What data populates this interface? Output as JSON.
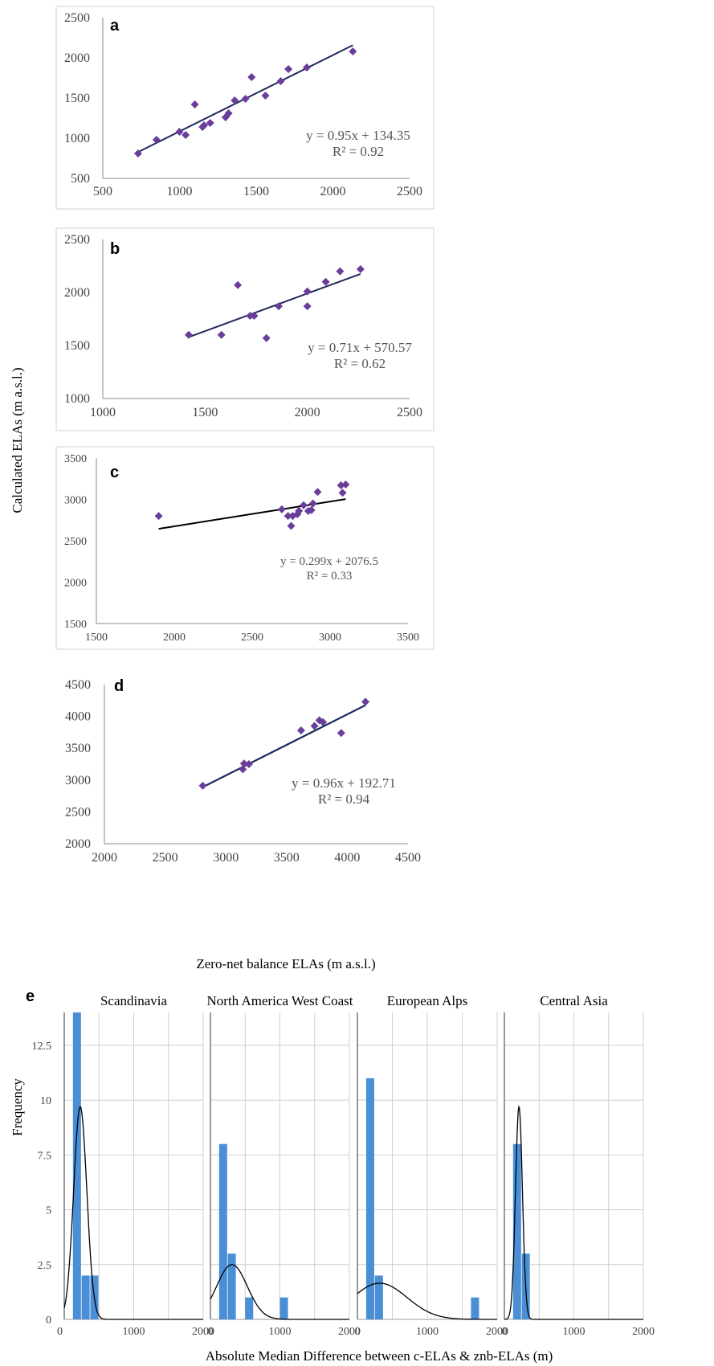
{
  "labels": {
    "y_axis_scatter": "Calculated ELAs (m a.s.l.)",
    "x_axis_scatter": "Zero-net balance ELAs (m a.s.l.)",
    "y_axis_hist": "Frequency",
    "x_axis_hist": "Absolute Median Difference between c-ELAs & znb-ELAs (m)"
  },
  "colors": {
    "marker": "#6a3d9a",
    "trendline_a": "#1f2a5a",
    "trendline_c": "#000000",
    "hist_bar": "#4a8fd6",
    "curve": "#000000"
  },
  "chart_data": [
    {
      "type": "scatter",
      "panel": "a",
      "xlim": [
        500,
        2500
      ],
      "ylim": [
        500,
        2500
      ],
      "xticks": [
        "500",
        "1000",
        "1500",
        "2000",
        "2500"
      ],
      "yticks": [
        "500",
        "1000",
        "1500",
        "2000",
        "2500"
      ],
      "points": [
        [
          730,
          810
        ],
        [
          850,
          980
        ],
        [
          1000,
          1080
        ],
        [
          1040,
          1040
        ],
        [
          1100,
          1420
        ],
        [
          1150,
          1140
        ],
        [
          1160,
          1160
        ],
        [
          1200,
          1190
        ],
        [
          1300,
          1260
        ],
        [
          1320,
          1310
        ],
        [
          1360,
          1470
        ],
        [
          1430,
          1490
        ],
        [
          1470,
          1760
        ],
        [
          1560,
          1530
        ],
        [
          1660,
          1710
        ],
        [
          1710,
          1860
        ],
        [
          1830,
          1880
        ],
        [
          2130,
          2080
        ]
      ],
      "trendline": {
        "x": [
          730,
          2130
        ],
        "slope": 0.95,
        "intercept": 134.35
      },
      "equation": "y = 0.95x + 134.35",
      "r2": "R² = 0.92",
      "grid": false
    },
    {
      "type": "scatter",
      "panel": "b",
      "xlim": [
        1000,
        2500
      ],
      "ylim": [
        1000,
        2500
      ],
      "xticks": [
        "1000",
        "1500",
        "2000",
        "2500"
      ],
      "yticks": [
        "1000",
        "1500",
        "2000",
        "2500"
      ],
      "points": [
        [
          1420,
          1600
        ],
        [
          1580,
          1600
        ],
        [
          1660,
          2070
        ],
        [
          1720,
          1780
        ],
        [
          1740,
          1780
        ],
        [
          1800,
          1570
        ],
        [
          1860,
          1870
        ],
        [
          2000,
          1870
        ],
        [
          2000,
          2010
        ],
        [
          2090,
          2100
        ],
        [
          2160,
          2200
        ],
        [
          2260,
          2220
        ]
      ],
      "trendline": {
        "x": [
          1420,
          2260
        ],
        "slope": 0.71,
        "intercept": 570.57
      },
      "equation": "y = 0.71x + 570.57",
      "r2": "R² = 0.62",
      "grid": false
    },
    {
      "type": "scatter",
      "panel": "c",
      "xlim": [
        1500,
        3500
      ],
      "ylim": [
        1500,
        3500
      ],
      "xticks": [
        "1500",
        "2000",
        "2500",
        "3000",
        "3500"
      ],
      "yticks": [
        "1500",
        "2000",
        "2500",
        "3000",
        "3500"
      ],
      "points": [
        [
          1900,
          2800
        ],
        [
          2690,
          2880
        ],
        [
          2730,
          2800
        ],
        [
          2750,
          2680
        ],
        [
          2760,
          2800
        ],
        [
          2790,
          2820
        ],
        [
          2800,
          2860
        ],
        [
          2830,
          2930
        ],
        [
          2860,
          2860
        ],
        [
          2880,
          2870
        ],
        [
          2890,
          2950
        ],
        [
          2920,
          3090
        ],
        [
          3070,
          3170
        ],
        [
          3080,
          3080
        ],
        [
          3100,
          3180
        ]
      ],
      "trendline": {
        "x": [
          1900,
          3100
        ],
        "slope": 0.299,
        "intercept": 2076.5
      },
      "equation": "y = 0.299x + 2076.5",
      "r2": "R² = 0.33",
      "grid": false
    },
    {
      "type": "scatter",
      "panel": "d",
      "xlim": [
        2000,
        4500
      ],
      "ylim": [
        2000,
        4500
      ],
      "xticks": [
        "2000",
        "2500",
        "3000",
        "3500",
        "4000",
        "4500"
      ],
      "yticks": [
        "2000",
        "2500",
        "3000",
        "3500",
        "4000",
        "4500"
      ],
      "points": [
        [
          2810,
          2910
        ],
        [
          3140,
          3170
        ],
        [
          3150,
          3260
        ],
        [
          3190,
          3250
        ],
        [
          3620,
          3780
        ],
        [
          3730,
          3850
        ],
        [
          3770,
          3940
        ],
        [
          3800,
          3910
        ],
        [
          3950,
          3740
        ],
        [
          4150,
          4230
        ]
      ],
      "trendline": {
        "x": [
          2810,
          4150
        ],
        "slope": 0.96,
        "intercept": 192.71
      },
      "equation": "y = 0.96x + 192.71",
      "r2": "R² = 0.94",
      "grid": false
    },
    {
      "type": "bar",
      "panel": "e",
      "xlim": [
        0,
        2000
      ],
      "ylim": [
        0,
        14
      ],
      "xticks": [
        "0",
        "1000",
        "2000"
      ],
      "yticks": [
        "0",
        "2.5",
        "5",
        "7.5",
        "10",
        "12.5"
      ],
      "bin_width": 125,
      "grid": true,
      "facets": [
        {
          "title": "Scandinavia",
          "bins": [
            [
              125,
              14
            ],
            [
              250,
              2
            ],
            [
              375,
              2
            ]
          ],
          "curve": {
            "mean": 230,
            "sd": 95,
            "peak": 9.7
          }
        },
        {
          "title": "North America West Coast",
          "bins": [
            [
              125,
              8
            ],
            [
              250,
              3
            ],
            [
              500,
              1
            ],
            [
              1000,
              1
            ]
          ],
          "curve": {
            "mean": 310,
            "sd": 220,
            "peak": 2.5
          }
        },
        {
          "title": "European Alps",
          "bins": [
            [
              125,
              11
            ],
            [
              250,
              2
            ],
            [
              1625,
              1
            ]
          ],
          "curve": {
            "mean": 320,
            "sd": 390,
            "peak": 1.65
          }
        },
        {
          "title": "Central Asia",
          "bins": [
            [
              125,
              8
            ],
            [
              250,
              3
            ]
          ],
          "curve": {
            "mean": 210,
            "sd": 50,
            "peak": 9.7
          }
        }
      ]
    }
  ]
}
